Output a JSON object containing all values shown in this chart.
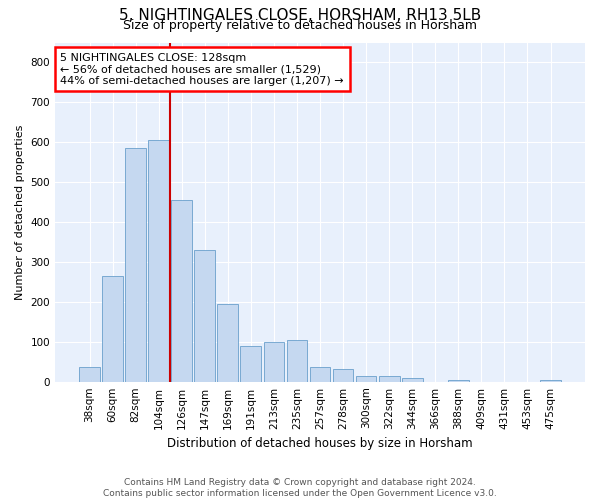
{
  "title_line1": "5, NIGHTINGALES CLOSE, HORSHAM, RH13 5LB",
  "title_line2": "Size of property relative to detached houses in Horsham",
  "xlabel": "Distribution of detached houses by size in Horsham",
  "ylabel": "Number of detached properties",
  "footer_line1": "Contains HM Land Registry data © Crown copyright and database right 2024.",
  "footer_line2": "Contains public sector information licensed under the Open Government Licence v3.0.",
  "annotation_line1": "5 NIGHTINGALES CLOSE: 128sqm",
  "annotation_line2": "← 56% of detached houses are smaller (1,529)",
  "annotation_line3": "44% of semi-detached houses are larger (1,207) →",
  "bar_labels": [
    "38sqm",
    "60sqm",
    "82sqm",
    "104sqm",
    "126sqm",
    "147sqm",
    "169sqm",
    "191sqm",
    "213sqm",
    "235sqm",
    "257sqm",
    "278sqm",
    "300sqm",
    "322sqm",
    "344sqm",
    "366sqm",
    "388sqm",
    "409sqm",
    "431sqm",
    "453sqm",
    "475sqm"
  ],
  "bar_values": [
    38,
    265,
    585,
    605,
    455,
    330,
    195,
    90,
    100,
    105,
    38,
    32,
    15,
    15,
    10,
    0,
    5,
    0,
    0,
    0,
    5
  ],
  "bar_color": "#c5d8f0",
  "bar_edge_color": "#6aa0cc",
  "red_line_after_bar_index": 3,
  "marker_color": "#cc0000",
  "ylim": [
    0,
    850
  ],
  "yticks": [
    0,
    100,
    200,
    300,
    400,
    500,
    600,
    700,
    800
  ],
  "plot_bg_color": "#e8f0fc",
  "grid_color": "#ffffff",
  "title1_fontsize": 11,
  "title2_fontsize": 9,
  "ylabel_fontsize": 8,
  "xlabel_fontsize": 8.5,
  "tick_fontsize": 7.5,
  "footer_fontsize": 6.5
}
